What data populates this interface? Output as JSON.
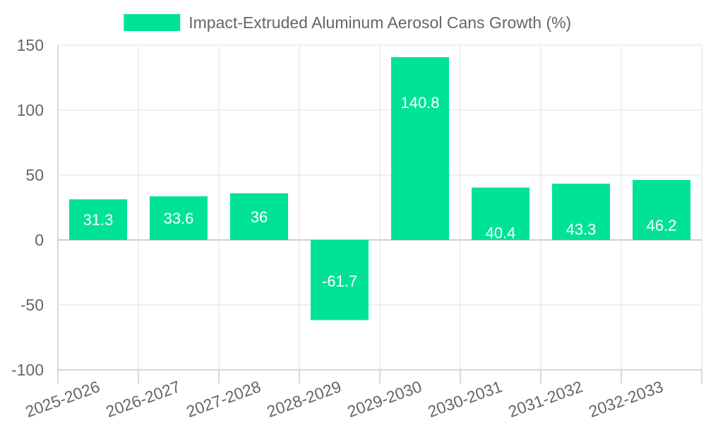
{
  "chart_data": {
    "type": "bar",
    "title": "",
    "xlabel": "",
    "ylabel": "",
    "categories": [
      "2025-2026",
      "2026-2027",
      "2027-2028",
      "2028-2029",
      "2029-2030",
      "2030-2031",
      "2031-2032",
      "2032-2033"
    ],
    "series": [
      {
        "name": "Impact-Extruded Aluminum Aerosol Cans Growth (%)",
        "values": [
          31.3,
          33.6,
          36,
          -61.7,
          140.8,
          40.4,
          43.3,
          46.2
        ],
        "color": "#00E396"
      }
    ],
    "data_labels": [
      "31.3",
      "33.6",
      "36",
      "-61.7",
      "140.8",
      "40.4",
      "43.3",
      "46.2"
    ],
    "ylim": [
      -100,
      150
    ],
    "yticks": [
      150,
      100,
      50,
      0,
      -50,
      -100
    ],
    "ytick_labels": [
      "150",
      "100",
      "50",
      "0",
      "-50",
      "-100"
    ],
    "grid": true,
    "legend_position": "top",
    "colors": {
      "bar": "#00E396",
      "grid": "#e0e0e0",
      "axis": "#cccccc",
      "zero_line": "#bdbdbd",
      "tick_text": "#666666",
      "legend_text": "#666666",
      "data_label": "#ffffff"
    }
  }
}
